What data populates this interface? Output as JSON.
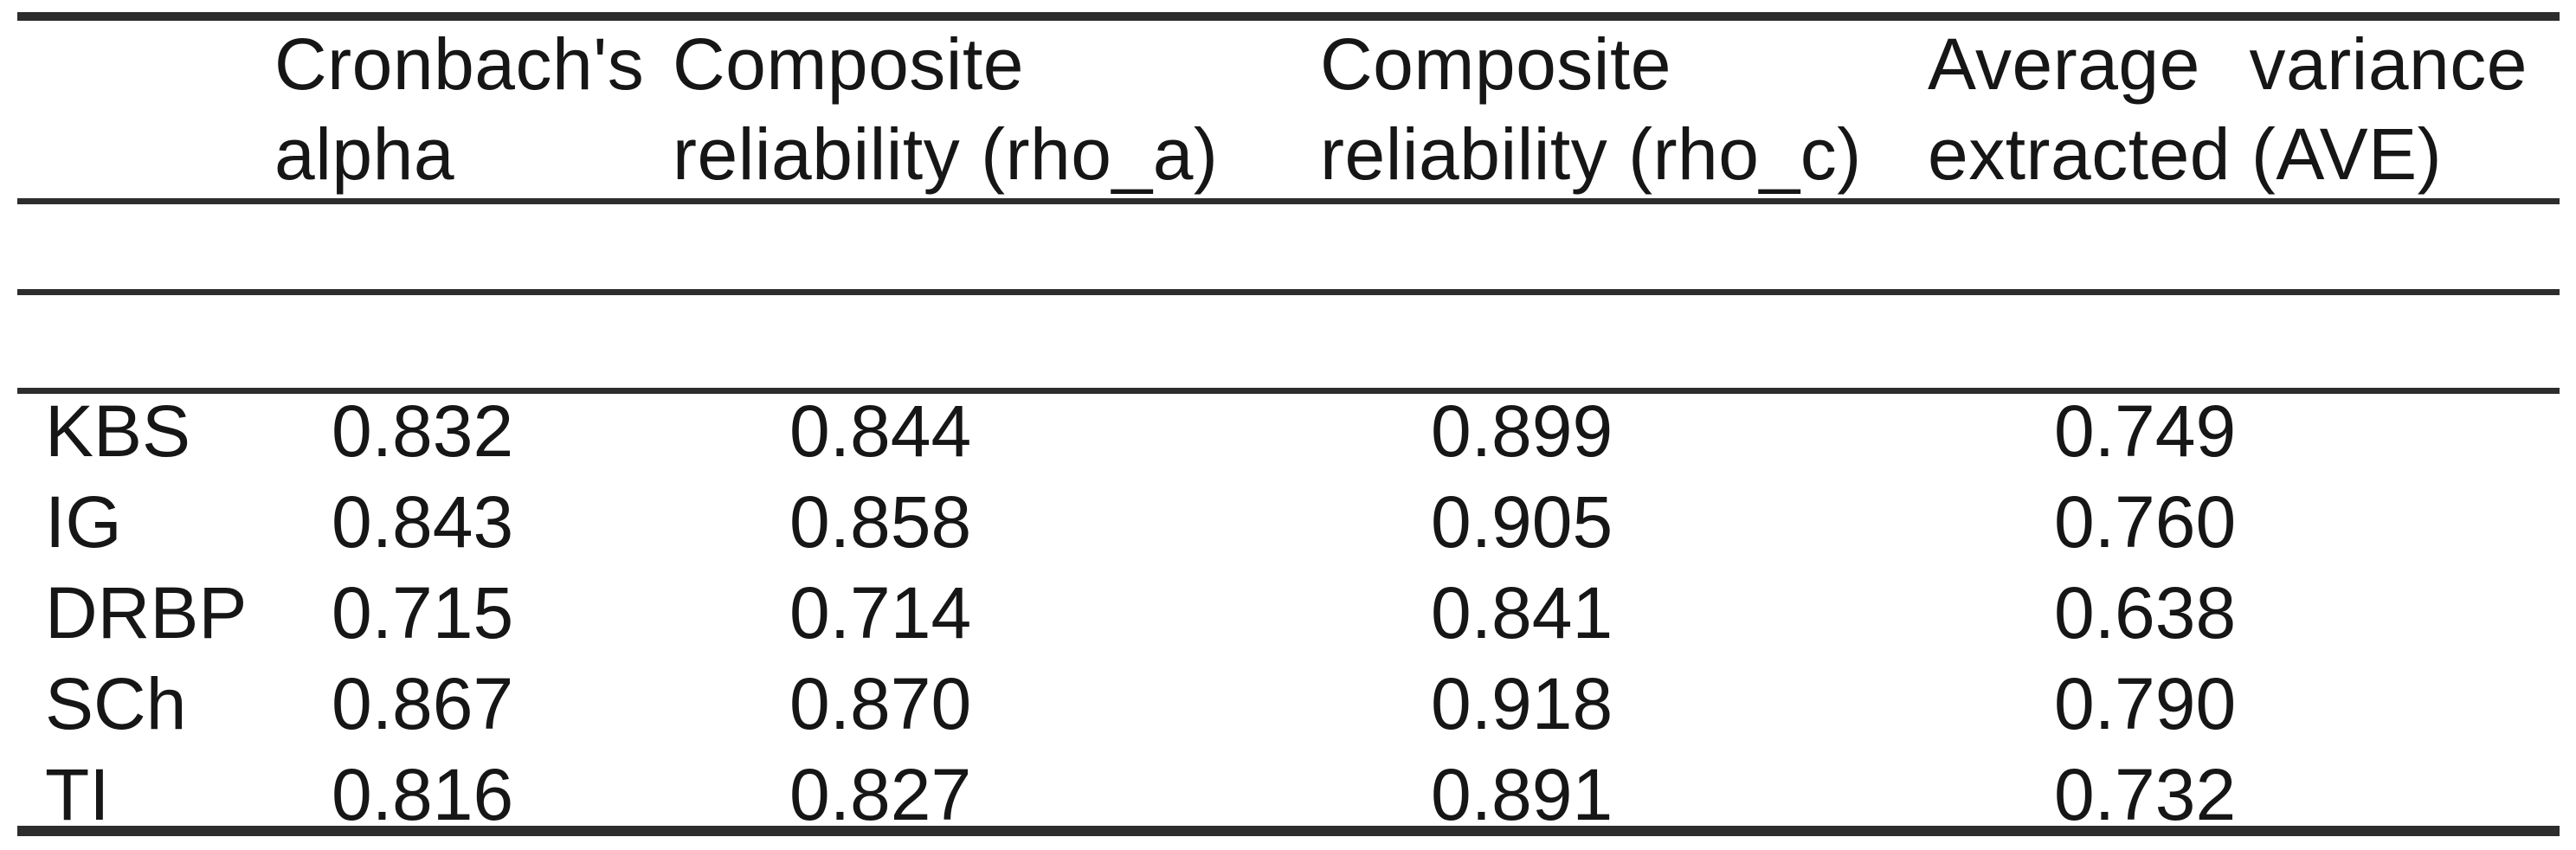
{
  "page": {
    "background": "#ffffff",
    "text_color": "#161616",
    "rule_color": "#2d2d2d"
  },
  "table": {
    "header": {
      "construct": "",
      "cronbach": {
        "line1": "Cronbach's",
        "line2": "alpha"
      },
      "rho_a": {
        "line1": "Composite",
        "line2": "reliability (rho_a)"
      },
      "rho_c": {
        "line1": "Composite",
        "line2": "reliability (rho_c)"
      },
      "ave": {
        "line1_word1": "Average",
        "line1_word2": "variance",
        "line2": "extracted (AVE)"
      }
    },
    "rows": [
      {
        "construct": "KBS",
        "cronbach": "0.832",
        "rho_a": "0.844",
        "rho_c": "0.899",
        "ave": "0.749"
      },
      {
        "construct": "IG",
        "cronbach": "0.843",
        "rho_a": "0.858",
        "rho_c": "0.905",
        "ave": "0.760"
      },
      {
        "construct": "DRBP",
        "cronbach": "0.715",
        "rho_a": "0.714",
        "rho_c": "0.841",
        "ave": "0.638"
      },
      {
        "construct": "SCh",
        "cronbach": "0.867",
        "rho_a": "0.870",
        "rho_c": "0.918",
        "ave": "0.790"
      },
      {
        "construct": "TI",
        "cronbach": "0.816",
        "rho_a": "0.827",
        "rho_c": "0.891",
        "ave": "0.732"
      }
    ]
  },
  "chart_data": {
    "type": "table",
    "columns": [
      "",
      "Cronbach's alpha",
      "Composite reliability (rho_a)",
      "Composite reliability (rho_c)",
      "Average variance extracted (AVE)"
    ],
    "rows": [
      [
        "KBS",
        0.832,
        0.844,
        0.899,
        0.749
      ],
      [
        "IG",
        0.843,
        0.858,
        0.905,
        0.76
      ],
      [
        "DRBP",
        0.715,
        0.714,
        0.841,
        0.638
      ],
      [
        "SCh",
        0.867,
        0.87,
        0.918,
        0.79
      ],
      [
        "TI",
        0.816,
        0.827,
        0.891,
        0.732
      ]
    ]
  }
}
